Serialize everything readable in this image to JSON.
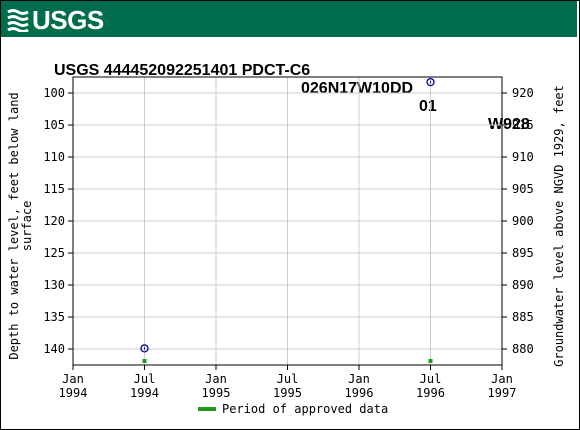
{
  "header": {
    "logo_text": "USGS",
    "brand_color": "#006e4c"
  },
  "chart_data": {
    "type": "scatter",
    "title_parts": [
      "USGS 444452092251401 PDCT-C6",
      "026N17W10DD",
      "01",
      "W928"
    ],
    "ylabel_left": [
      "Depth to water level, feet below land",
      "surface"
    ],
    "ylabel_right": "Groundwater level above NGVD 1929, feet",
    "x_ticks": [
      {
        "month": 0,
        "line1": "Jan",
        "line2": "1994"
      },
      {
        "month": 6,
        "line1": "Jul",
        "line2": "1994"
      },
      {
        "month": 12,
        "line1": "Jan",
        "line2": "1995"
      },
      {
        "month": 18,
        "line1": "Jul",
        "line2": "1995"
      },
      {
        "month": 24,
        "line1": "Jan",
        "line2": "1996"
      },
      {
        "month": 30,
        "line1": "Jul",
        "line2": "1996"
      },
      {
        "month": 36,
        "line1": "Jan",
        "line2": "1997"
      }
    ],
    "xlim": [
      "1994-01",
      "1997-01"
    ],
    "ylim_left": [
      97.5,
      142.5
    ],
    "y_ticks_left": [
      100,
      105,
      110,
      115,
      120,
      125,
      130,
      135,
      140
    ],
    "y_ticks_right": [
      920,
      915,
      910,
      905,
      900,
      895,
      890,
      885,
      880
    ],
    "right_offset": 1020,
    "y_inverted": true,
    "grid": true,
    "series": [
      {
        "marker": "open-circle",
        "color": "#00008b",
        "points": [
          {
            "date": "1994-07",
            "depth": 139.9
          },
          {
            "date": "1996-07",
            "depth": 98.3
          }
        ]
      }
    ],
    "approved_periods": [
      {
        "date": "1994-07"
      },
      {
        "date": "1996-07"
      }
    ],
    "approved_color": "#1a9c1a",
    "legend_label": "Period of approved data",
    "legend_position": "bottom-center"
  }
}
